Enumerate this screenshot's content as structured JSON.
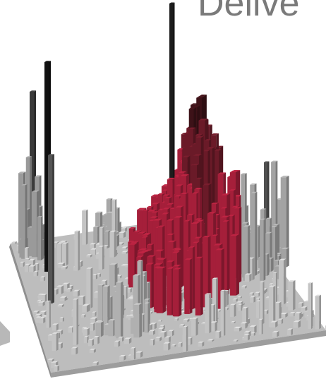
{
  "header": {
    "title": "Delive"
  }
}
